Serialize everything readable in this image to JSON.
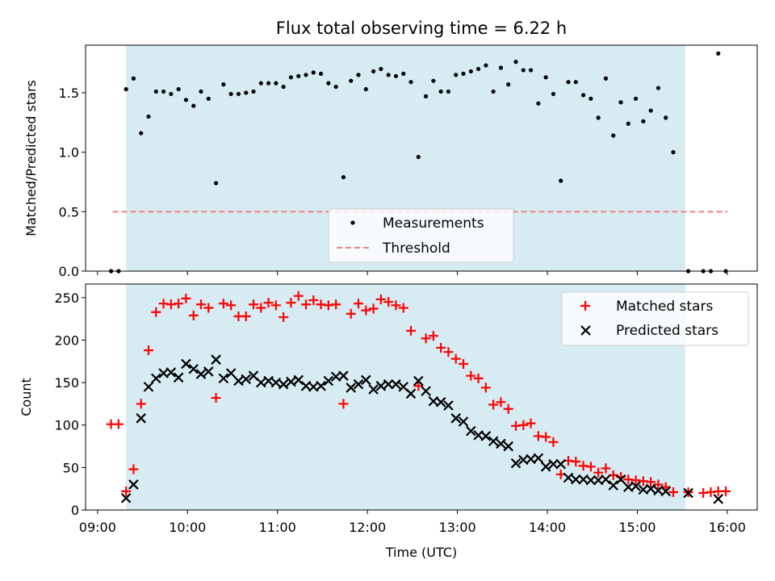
{
  "title": "Flux total observing time = 6.22 h",
  "colors": {
    "shade": "#add8e6",
    "threshold": "#f08080",
    "matched": "#ff0000",
    "predicted": "#000000",
    "measurement": "#000000"
  },
  "shade_range": [
    "09:19",
    "15:32"
  ],
  "x_axis": {
    "label": "Time (UTC)",
    "range": [
      "08:52",
      "16:20"
    ],
    "ticks": [
      "09:00",
      "10:00",
      "11:00",
      "12:00",
      "13:00",
      "14:00",
      "15:00",
      "16:00"
    ]
  },
  "chart_data": [
    {
      "type": "scatter",
      "ylabel": "Matched/Predicted stars",
      "ylim": [
        0,
        1.9
      ],
      "yticks": [
        "0.0",
        "0.5",
        "1.0",
        "1.5"
      ],
      "legend": {
        "placement": "lower-center",
        "entries": [
          "Measurements",
          "Threshold"
        ]
      },
      "threshold": {
        "value": 0.5,
        "x_range": [
          "09:10",
          "16:00"
        ]
      },
      "series": [
        {
          "name": "Measurements",
          "x": [
            "09:09",
            "09:14",
            "09:19",
            "09:24",
            "09:29",
            "09:34",
            "09:39",
            "09:44",
            "09:49",
            "09:54",
            "09:59",
            "10:04",
            "10:09",
            "10:14",
            "10:19",
            "10:24",
            "10:29",
            "10:34",
            "10:39",
            "10:44",
            "10:49",
            "10:54",
            "10:59",
            "11:04",
            "11:09",
            "11:14",
            "11:19",
            "11:24",
            "11:29",
            "11:34",
            "11:39",
            "11:44",
            "11:49",
            "11:54",
            "11:59",
            "12:04",
            "12:09",
            "12:14",
            "12:19",
            "12:24",
            "12:29",
            "12:34",
            "12:39",
            "12:44",
            "12:49",
            "12:54",
            "12:59",
            "13:04",
            "13:09",
            "13:14",
            "13:19",
            "13:24",
            "13:29",
            "13:34",
            "13:39",
            "13:44",
            "13:49",
            "13:54",
            "13:59",
            "14:04",
            "14:09",
            "14:14",
            "14:19",
            "14:24",
            "14:29",
            "14:34",
            "14:39",
            "14:44",
            "14:49",
            "14:54",
            "14:59",
            "15:04",
            "15:09",
            "15:14",
            "15:19",
            "15:24",
            "15:34",
            "15:44",
            "15:49",
            "15:54",
            "15:59"
          ],
          "y": [
            0.0,
            0.0,
            1.53,
            1.62,
            1.16,
            1.3,
            1.51,
            1.51,
            1.49,
            1.53,
            1.44,
            1.39,
            1.51,
            1.45,
            0.74,
            1.57,
            1.49,
            1.49,
            1.5,
            1.51,
            1.58,
            1.58,
            1.58,
            1.55,
            1.63,
            1.64,
            1.65,
            1.67,
            1.66,
            1.58,
            1.55,
            0.79,
            1.6,
            1.65,
            1.53,
            1.68,
            1.7,
            1.65,
            1.64,
            1.66,
            1.59,
            0.96,
            1.47,
            1.6,
            1.51,
            1.51,
            1.65,
            1.66,
            1.68,
            1.7,
            1.73,
            1.51,
            1.71,
            1.57,
            1.76,
            1.69,
            1.69,
            1.41,
            1.63,
            1.49,
            0.76,
            1.59,
            1.59,
            1.48,
            1.45,
            1.29,
            1.62,
            1.14,
            1.42,
            1.24,
            1.45,
            1.26,
            1.35,
            1.54,
            1.29,
            1.0,
            0.0,
            0.0,
            0.0,
            1.83,
            0.0
          ]
        }
      ]
    },
    {
      "type": "scatter",
      "ylabel": "Count",
      "ylim": [
        0,
        266
      ],
      "yticks": [
        "0",
        "50",
        "100",
        "150",
        "200",
        "250"
      ],
      "legend": {
        "placement": "upper-right",
        "entries": [
          "Matched stars",
          "Predicted stars"
        ]
      },
      "series": [
        {
          "name": "Matched stars",
          "x": [
            "09:09",
            "09:14",
            "09:19",
            "09:24",
            "09:29",
            "09:34",
            "09:39",
            "09:44",
            "09:49",
            "09:54",
            "09:59",
            "10:04",
            "10:09",
            "10:14",
            "10:19",
            "10:24",
            "10:29",
            "10:34",
            "10:39",
            "10:44",
            "10:49",
            "10:54",
            "10:59",
            "11:04",
            "11:09",
            "11:14",
            "11:19",
            "11:24",
            "11:29",
            "11:34",
            "11:39",
            "11:44",
            "11:49",
            "11:54",
            "11:59",
            "12:04",
            "12:09",
            "12:14",
            "12:19",
            "12:24",
            "12:29",
            "12:34",
            "12:39",
            "12:44",
            "12:49",
            "12:54",
            "12:59",
            "13:04",
            "13:09",
            "13:14",
            "13:19",
            "13:24",
            "13:29",
            "13:34",
            "13:39",
            "13:44",
            "13:49",
            "13:54",
            "13:59",
            "14:04",
            "14:09",
            "14:14",
            "14:19",
            "14:24",
            "14:29",
            "14:34",
            "14:39",
            "14:44",
            "14:49",
            "14:54",
            "14:59",
            "15:04",
            "15:09",
            "15:14",
            "15:19",
            "15:24",
            "15:34",
            "15:44",
            "15:49",
            "15:54",
            "15:59"
          ],
          "y": [
            101,
            101,
            22,
            48,
            125,
            188,
            233,
            243,
            242,
            243,
            249,
            229,
            242,
            238,
            132,
            243,
            241,
            228,
            228,
            242,
            238,
            244,
            241,
            227,
            244,
            252,
            242,
            247,
            242,
            241,
            242,
            125,
            231,
            243,
            235,
            237,
            248,
            245,
            241,
            238,
            211,
            146,
            202,
            205,
            191,
            186,
            178,
            172,
            158,
            155,
            144,
            124,
            127,
            119,
            99,
            100,
            102,
            87,
            86,
            80,
            42,
            58,
            57,
            52,
            51,
            44,
            49,
            41,
            39,
            36,
            35,
            34,
            33,
            30,
            27,
            21,
            21,
            20,
            21,
            22,
            22
          ]
        },
        {
          "name": "Predicted stars",
          "x": [
            "09:19",
            "09:24",
            "09:29",
            "09:34",
            "09:39",
            "09:44",
            "09:49",
            "09:54",
            "09:59",
            "10:04",
            "10:09",
            "10:14",
            "10:19",
            "10:24",
            "10:29",
            "10:34",
            "10:39",
            "10:44",
            "10:49",
            "10:54",
            "10:59",
            "11:04",
            "11:09",
            "11:14",
            "11:19",
            "11:24",
            "11:29",
            "11:34",
            "11:39",
            "11:44",
            "11:49",
            "11:54",
            "11:59",
            "12:04",
            "12:09",
            "12:14",
            "12:19",
            "12:24",
            "12:29",
            "12:34",
            "12:39",
            "12:44",
            "12:49",
            "12:54",
            "12:59",
            "13:04",
            "13:09",
            "13:14",
            "13:19",
            "13:24",
            "13:29",
            "13:34",
            "13:39",
            "13:44",
            "13:49",
            "13:54",
            "13:59",
            "14:04",
            "14:09",
            "14:14",
            "14:19",
            "14:24",
            "14:29",
            "14:34",
            "14:39",
            "14:44",
            "14:49",
            "14:54",
            "14:59",
            "15:04",
            "15:09",
            "15:14",
            "15:19",
            "15:34",
            "15:54"
          ],
          "y": [
            14,
            30,
            108,
            145,
            155,
            161,
            162,
            156,
            172,
            166,
            160,
            163,
            177,
            155,
            161,
            152,
            154,
            158,
            150,
            152,
            150,
            148,
            151,
            153,
            146,
            145,
            146,
            152,
            157,
            158,
            144,
            148,
            153,
            142,
            146,
            148,
            148,
            145,
            137,
            152,
            140,
            128,
            127,
            123,
            108,
            104,
            93,
            88,
            87,
            81,
            78,
            75,
            55,
            59,
            60,
            61,
            51,
            54,
            54,
            38,
            36,
            36,
            35,
            35,
            36,
            29,
            36,
            27,
            28,
            24,
            25,
            23,
            22,
            20,
            13
          ]
        }
      ]
    }
  ]
}
